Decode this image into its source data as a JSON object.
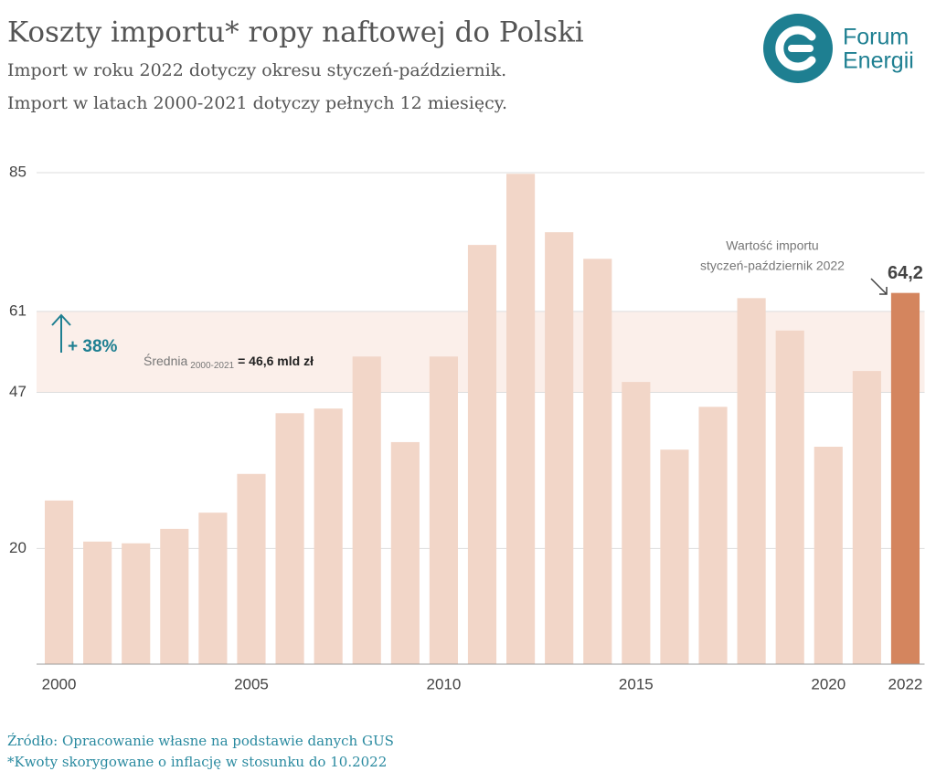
{
  "chart_data": {
    "type": "bar",
    "title": "Koszty importu* ropy naftowej do Polski",
    "subtitle": [
      "Import w roku 2022 dotyczy okresu styczeń-październik.",
      "Import w latach 2000-2021 dotyczy pełnych 12 miesięcy."
    ],
    "logo": [
      "Forum",
      "Energii"
    ],
    "categories": [
      "2000",
      null,
      null,
      null,
      null,
      "2005",
      null,
      null,
      null,
      null,
      "2010",
      null,
      null,
      null,
      null,
      "2015",
      null,
      null,
      null,
      null,
      "2020",
      null,
      "2022"
    ],
    "values": [
      28.3,
      21.2,
      20.9,
      23.4,
      26.2,
      32.9,
      43.4,
      44.2,
      53.2,
      38.4,
      53.2,
      72.5,
      84.8,
      74.7,
      70.1,
      48.8,
      37.1,
      44.5,
      63.3,
      57.7,
      37.6,
      50.7,
      64.2
    ],
    "value_labels": [
      null,
      null,
      null,
      null,
      null,
      null,
      null,
      null,
      null,
      null,
      null,
      null,
      null,
      null,
      null,
      null,
      null,
      null,
      null,
      null,
      null,
      null,
      "64,2"
    ],
    "colors": [
      "#f2d6c8",
      "#f2d6c8",
      "#f2d6c8",
      "#f2d6c8",
      "#f2d6c8",
      "#f2d6c8",
      "#f2d6c8",
      "#f2d6c8",
      "#f2d6c8",
      "#f2d6c8",
      "#f2d6c8",
      "#f2d6c8",
      "#f2d6c8",
      "#f2d6c8",
      "#f2d6c8",
      "#f2d6c8",
      "#f2d6c8",
      "#f2d6c8",
      "#f2d6c8",
      "#f2d6c8",
      "#f2d6c8",
      "#f2d6c8",
      "#d4855e"
    ],
    "ylim": [
      0,
      85
    ],
    "yticks": [
      20,
      47,
      61,
      85
    ],
    "grid": true,
    "band_range": [
      47,
      61
    ],
    "band_color": "#fbefea",
    "annotations": {
      "change": "+ 38%",
      "average_label": "Średnia",
      "average_period": "2000-2021",
      "average_value": "= 46,6 mld zł",
      "note": [
        "Wartość importu",
        "styczeń-październik 2022"
      ]
    },
    "source": [
      "Źródło: Opracowanie własne na podstawie danych GUS",
      "*Kwoty skorygowane o inflację w stosunku do 10.2022"
    ]
  }
}
